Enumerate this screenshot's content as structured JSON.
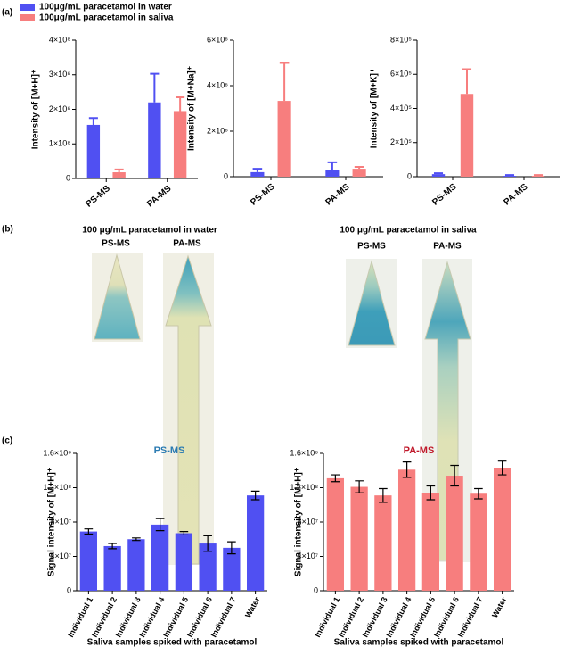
{
  "panel_labels": [
    "(a)",
    "(b)",
    "(c)"
  ],
  "photos": [
    {
      "title": "100 μg/mL paracetamol in water",
      "labels": [
        "PS-MS",
        "PA-MS"
      ]
    },
    {
      "title": "100 μg/mL paracetamol in saliva",
      "labels": [
        "PS-MS",
        "PA-MS"
      ]
    }
  ],
  "chart_data": [
    {
      "type": "bar",
      "y_label": "Intensity of [M+H]⁺",
      "categories": [
        "PS-MS",
        "PA-MS"
      ],
      "series": [
        {
          "name": "100μg/mL paracetamol in water",
          "color": "#5050f2",
          "values": [
            155000000,
            220000000
          ],
          "errors": [
            20000000,
            83000000
          ]
        },
        {
          "name": "100μg/mL paracetamol in saliva",
          "color": "#f77e7e",
          "values": [
            18000000,
            195000000
          ],
          "errors": [
            8000000,
            40000000
          ]
        }
      ],
      "ylim": [
        0,
        400000000
      ],
      "yticks": [
        0,
        {
          "value": 100000000,
          "label": "1×10⁸"
        },
        {
          "value": 200000000,
          "label": "2×10⁸"
        },
        {
          "value": 300000000,
          "label": "3×10⁸"
        },
        {
          "value": 400000000,
          "label": "4×10⁸"
        }
      ],
      "error_bars": "upper",
      "legend": "top-left"
    },
    {
      "type": "bar",
      "y_label": "Intensity of [M+Na]⁺",
      "categories": [
        "PS-MS",
        "PA-MS"
      ],
      "series": [
        {
          "name": "100μg/mL paracetamol in water",
          "color": "#5050f2",
          "values": [
            200000,
            300000
          ],
          "errors": [
            150000,
            330000
          ]
        },
        {
          "name": "100μg/mL paracetamol in saliva",
          "color": "#f77e7e",
          "values": [
            3330000,
            350000
          ],
          "errors": [
            1670000,
            80000
          ]
        }
      ],
      "ylim": [
        0,
        6000000
      ],
      "yticks": [
        0,
        {
          "value": 2000000,
          "label": "2×10⁶"
        },
        {
          "value": 4000000,
          "label": "4×10⁶"
        },
        {
          "value": 6000000,
          "label": "6×10⁶"
        }
      ],
      "error_bars": "upper"
    },
    {
      "type": "bar",
      "y_label": "Intensity of [M+K]⁺",
      "categories": [
        "PS-MS",
        "PA-MS"
      ],
      "series": [
        {
          "name": "100μg/mL paracetamol in water",
          "color": "#5050f2",
          "values": [
            15000,
            5000
          ],
          "errors": [
            5000,
            5000
          ]
        },
        {
          "name": "100μg/mL paracetamol in saliva",
          "color": "#f77e7e",
          "values": [
            485000,
            5000
          ],
          "errors": [
            145000,
            5000
          ]
        }
      ],
      "ylim": [
        0,
        800000
      ],
      "yticks": [
        0,
        {
          "value": 200000,
          "label": "2×10⁵"
        },
        {
          "value": 400000,
          "label": "4×10⁵"
        },
        {
          "value": 600000,
          "label": "6×10⁵"
        },
        {
          "value": 800000,
          "label": "8×10⁵"
        }
      ],
      "error_bars": "upper"
    },
    {
      "type": "bar",
      "title": "PS-MS",
      "title_color": "#2b7bb2",
      "y_label": "Signal intensity of [M+H]⁺",
      "x_label": "Saliva samples spiked with paracetamol",
      "categories": [
        "Individual 1",
        "Individual 2",
        "Individual 3",
        "Individual 4",
        "Individual 5",
        "Individual 6",
        "Individual 7",
        "Water"
      ],
      "series": [
        {
          "name": "PS-MS",
          "color": "#5050f2",
          "values": [
            69000000,
            52000000,
            60000000,
            77000000,
            67000000,
            55000000,
            50000000,
            111000000
          ],
          "errors": [
            3000000,
            3000000,
            1500000,
            7000000,
            2000000,
            9000000,
            7000000,
            5000000
          ]
        }
      ],
      "ylim": [
        0,
        160000000
      ],
      "yticks": [
        0,
        {
          "value": 40000000,
          "label": "4×10⁷"
        },
        {
          "value": 80000000,
          "label": "8×10⁷"
        },
        {
          "value": 120000000,
          "label": "1.2×10⁸"
        },
        {
          "value": 160000000,
          "label": "1.6×10⁸"
        }
      ],
      "error_bars": "both"
    },
    {
      "type": "bar",
      "title": "PA-MS",
      "title_color": "#c0182a",
      "y_label": "Signal intensity of [M+H]⁺",
      "x_label": "Saliva samples spiked with paracetamol",
      "categories": [
        "Individual 1",
        "Individual 2",
        "Individual 3",
        "Individual 4",
        "Individual 5",
        "Individual 6",
        "Individual 7",
        "Water"
      ],
      "series": [
        {
          "name": "PA-MS",
          "color": "#f77e7e",
          "values": [
            131000000,
            121000000,
            111000000,
            141000000,
            114000000,
            134000000,
            113000000,
            143000000
          ],
          "errors": [
            4000000,
            7000000,
            8000000,
            9000000,
            8000000,
            12000000,
            6000000,
            8000000
          ]
        }
      ],
      "ylim": [
        0,
        160000000
      ],
      "yticks": [
        0,
        {
          "value": 40000000,
          "label": "4×10⁷"
        },
        {
          "value": 80000000,
          "label": "8×10⁷"
        },
        {
          "value": 120000000,
          "label": "1.2×10⁸"
        },
        {
          "value": 160000000,
          "label": "1.6×10⁸"
        }
      ],
      "error_bars": "both"
    }
  ]
}
